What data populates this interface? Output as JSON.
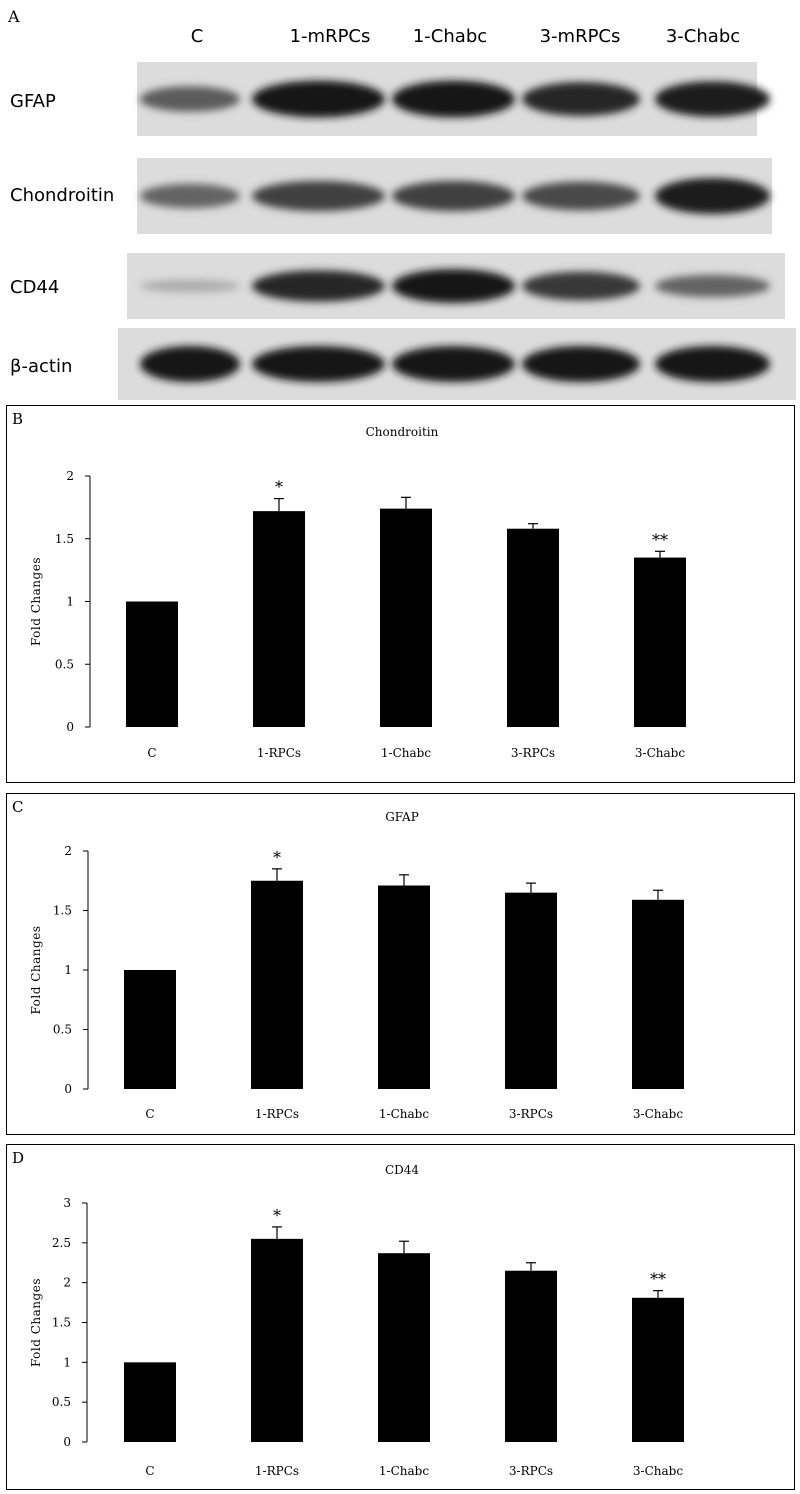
{
  "panel_a": {
    "letter": "A",
    "lanes": [
      "C",
      "1-mRPCs",
      "1-Chabc",
      "3-mRPCs",
      "3-Chabc"
    ],
    "rows": [
      {
        "label": "GFAP",
        "intensity": [
          0.55,
          0.95,
          0.95,
          0.85,
          0.9
        ]
      },
      {
        "label": "Chondroitin",
        "intensity": [
          0.5,
          0.7,
          0.7,
          0.65,
          0.9
        ]
      },
      {
        "label": "CD44",
        "intensity": [
          0.1,
          0.85,
          0.95,
          0.75,
          0.5
        ]
      },
      {
        "label": "β-actin",
        "intensity": [
          0.95,
          0.95,
          0.95,
          0.95,
          0.95
        ]
      }
    ]
  },
  "chart_data": [
    {
      "id": "chartB",
      "letter": "B",
      "type": "bar",
      "title": "Chondroitin",
      "ylabel": "Fold Changes",
      "categories": [
        "C",
        "1-RPCs",
        "1-Chabc",
        "3-RPCs",
        "3-Chabc"
      ],
      "values": [
        1.0,
        1.72,
        1.74,
        1.58,
        1.35
      ],
      "errors": [
        0,
        0.1,
        0.09,
        0.04,
        0.05
      ],
      "significance": [
        "",
        "*",
        "",
        "",
        "**"
      ],
      "ylim": [
        0,
        2
      ],
      "yticks": [
        "0",
        "0.5",
        "1",
        "1.5",
        "2"
      ],
      "grid": false
    },
    {
      "id": "chartC",
      "letter": "C",
      "type": "bar",
      "title": "GFAP",
      "ylabel": "Fold Changes",
      "categories": [
        "C",
        "1-RPCs",
        "1-Chabc",
        "3-RPCs",
        "3-Chabc"
      ],
      "values": [
        1.0,
        1.75,
        1.71,
        1.65,
        1.59
      ],
      "errors": [
        0,
        0.1,
        0.09,
        0.08,
        0.08
      ],
      "significance": [
        "",
        "*",
        "",
        "",
        ""
      ],
      "ylim": [
        0,
        2
      ],
      "yticks": [
        "0",
        "0.5",
        "1",
        "1.5",
        "2"
      ],
      "grid": false
    },
    {
      "id": "chartD",
      "letter": "D",
      "type": "bar",
      "title": "CD44",
      "ylabel": "Fold Changes",
      "categories": [
        "C",
        "1-RPCs",
        "1-Chabc",
        "3-RPCs",
        "3-Chabc"
      ],
      "values": [
        1.0,
        2.55,
        2.37,
        2.15,
        1.81
      ],
      "errors": [
        0,
        0.15,
        0.15,
        0.1,
        0.09
      ],
      "significance": [
        "",
        "*",
        "",
        "",
        "**"
      ],
      "ylim": [
        0,
        3
      ],
      "yticks": [
        "0",
        "0.5",
        "1",
        "1.5",
        "2",
        "2.5",
        "3"
      ],
      "grid": false
    }
  ]
}
